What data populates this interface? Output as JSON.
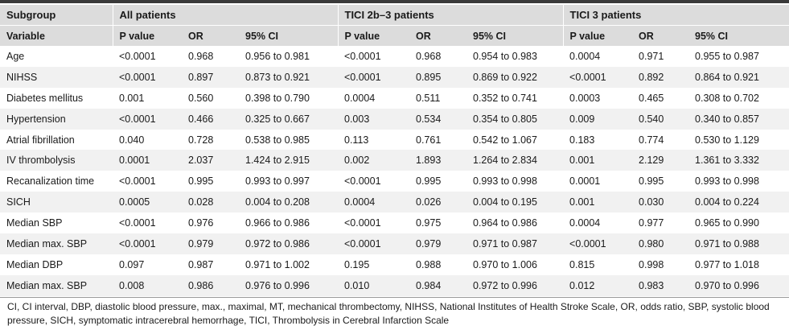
{
  "header": {
    "subgroup_label": "Subgroup",
    "variable_label": "Variable",
    "groups": [
      "All patients",
      "TICI 2b–3 patients",
      "TICI 3 patients"
    ],
    "columns": [
      "P value",
      "OR",
      "95% CI"
    ]
  },
  "rows": [
    {
      "variable": "Age",
      "cells": [
        "<0.0001",
        "0.968",
        "0.956 to 0.981",
        "<0.0001",
        "0.968",
        "0.954 to 0.983",
        "0.0004",
        "0.971",
        "0.955 to 0.987"
      ]
    },
    {
      "variable": "NIHSS",
      "cells": [
        "<0.0001",
        "0.897",
        "0.873 to 0.921",
        "<0.0001",
        "0.895",
        "0.869 to 0.922",
        "<0.0001",
        "0.892",
        "0.864 to 0.921"
      ]
    },
    {
      "variable": "Diabetes mellitus",
      "cells": [
        "0.001",
        "0.560",
        "0.398 to 0.790",
        "0.0004",
        "0.511",
        "0.352 to 0.741",
        "0.0003",
        "0.465",
        "0.308 to 0.702"
      ]
    },
    {
      "variable": "Hypertension",
      "cells": [
        "<0.0001",
        "0.466",
        "0.325 to 0.667",
        "0.003",
        "0.534",
        "0.354 to 0.805",
        "0.009",
        "0.540",
        "0.340 to 0.857"
      ]
    },
    {
      "variable": "Atrial fibrillation",
      "cells": [
        "0.040",
        "0.728",
        "0.538 to 0.985",
        "0.113",
        "0.761",
        "0.542 to 1.067",
        "0.183",
        "0.774",
        "0.530 to 1.129"
      ]
    },
    {
      "variable": "IV thrombolysis",
      "cells": [
        "0.0001",
        "2.037",
        "1.424 to 2.915",
        "0.002",
        "1.893",
        "1.264 to 2.834",
        "0.001",
        "2.129",
        "1.361 to 3.332"
      ]
    },
    {
      "variable": "Recanalization time",
      "cells": [
        "<0.0001",
        "0.995",
        "0.993 to 0.997",
        "<0.0001",
        "0.995",
        "0.993 to 0.998",
        "0.0001",
        "0.995",
        "0.993 to 0.998"
      ]
    },
    {
      "variable": "SICH",
      "cells": [
        "0.0005",
        "0.028",
        "0.004 to 0.208",
        "0.0004",
        "0.026",
        "0.004 to 0.195",
        "0.001",
        "0.030",
        "0.004 to 0.224"
      ]
    },
    {
      "variable": "Median SBP",
      "cells": [
        "<0.0001",
        "0.976",
        "0.966 to 0.986",
        "<0.0001",
        "0.975",
        "0.964 to 0.986",
        "0.0004",
        "0.977",
        "0.965 to 0.990"
      ]
    },
    {
      "variable": "Median max. SBP",
      "cells": [
        "<0.0001",
        "0.979",
        "0.972 to 0.986",
        "<0.0001",
        "0.979",
        "0.971 to 0.987",
        "<0.0001",
        "0.980",
        "0.971 to 0.988"
      ]
    },
    {
      "variable": "Median DBP",
      "cells": [
        "0.097",
        "0.987",
        "0.971 to 1.002",
        "0.195",
        "0.988",
        "0.970 to 1.006",
        "0.815",
        "0.998",
        "0.977 to 1.018"
      ]
    },
    {
      "variable": "Median max. SBP",
      "cells": [
        "0.008",
        "0.986",
        "0.976 to 0.996",
        "0.010",
        "0.984",
        "0.972 to 0.996",
        "0.012",
        "0.983",
        "0.970 to 0.996"
      ]
    }
  ],
  "footnote": "CI, CI interval, DBP, diastolic blood pressure, max., maximal, MT, mechanical thrombectomy, NIHSS, National Institutes of Health Stroke Scale, OR, odds ratio, SBP, systolic blood pressure, SICH, symptomatic intracerebral hemorrhage, TICI, Thrombolysis in Cerebral Infarction Scale"
}
